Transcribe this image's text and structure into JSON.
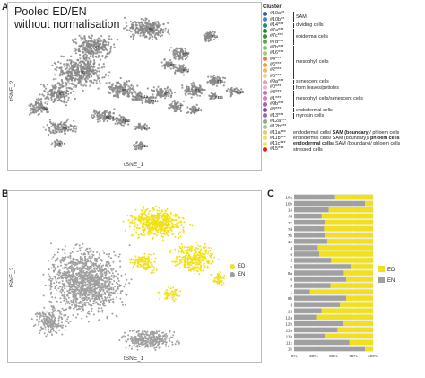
{
  "panelA": {
    "letter": "A",
    "title_line1": "Pooled ED/EN",
    "title_line2": "without normalisation",
    "xlabel": "tSNE_1",
    "ylabel": "tSNE_2",
    "legend_title": "Cluster",
    "legend_items": [
      {
        "label": "#10a**",
        "color": "#2e5fa8"
      },
      {
        "label": "#10b**",
        "color": "#4a7fd0"
      },
      {
        "label": "#14***",
        "color": "#1f8a78"
      },
      {
        "label": "#7a***",
        "color": "#2f7a2a"
      },
      {
        "label": "#7c***",
        "color": "#3c8c3a"
      },
      {
        "label": "#7d***",
        "color": "#57a64a"
      },
      {
        "label": "#7b***",
        "color": "#7dc36b"
      },
      {
        "label": "#16***",
        "color": "#9ed06e"
      },
      {
        "label": "#4***",
        "color": "#f07a2a"
      },
      {
        "label": "#6***",
        "color": "#f49a3a"
      },
      {
        "label": "#2***",
        "color": "#f7b65a"
      },
      {
        "label": "#5***",
        "color": "#f4cc7a"
      },
      {
        "label": "#9a***",
        "color": "#e8a0b8"
      },
      {
        "label": "#0***",
        "color": "#f0b0c6"
      },
      {
        "label": "#8***",
        "color": "#c86ab0"
      },
      {
        "label": "#1***",
        "color": "#d77ac0"
      },
      {
        "label": "#9b***",
        "color": "#b45aa0"
      },
      {
        "label": "#3***",
        "color": "#7a4a9a"
      },
      {
        "label": "#13***",
        "color": "#9a62ba"
      },
      {
        "label": "#12a***",
        "color": "#8aa88a"
      },
      {
        "label": "#12b***",
        "color": "#a6bfa2"
      },
      {
        "label": "#11a***",
        "color": "#d8d060"
      },
      {
        "label": "#11b***",
        "color": "#ece070"
      },
      {
        "label": "#11c***",
        "color": "#f5ec3a"
      },
      {
        "label": "#15***",
        "color": "#e02020"
      }
    ],
    "groups": [
      {
        "label": "SAM",
        "from": 0,
        "to": 1
      },
      {
        "label": "dividing cells",
        "from": 2,
        "to": 2
      },
      {
        "label": "epidermal cells",
        "from": 3,
        "to": 5
      },
      {
        "label": "mesophyll cells",
        "from": 6,
        "to": 11
      },
      {
        "label": "senescent cells",
        "from": 12,
        "to": 12
      },
      {
        "label": "from leaves/petioles",
        "from": 13,
        "to": 13
      },
      {
        "label": "mesophyll cells/senescent cells",
        "from": 14,
        "to": 16
      },
      {
        "label": "endodermal cells",
        "from": 17,
        "to": 17
      },
      {
        "label": "myrosin cells",
        "from": 18,
        "to": 18
      }
    ],
    "row_annotations": [
      {
        "row": 21,
        "parts": [
          {
            "t": "endodermal cells/ ",
            "b": false
          },
          {
            "t": "SAM (boundary)",
            "b": true
          },
          {
            "t": "/ phloem cells",
            "b": false
          }
        ]
      },
      {
        "row": 22,
        "parts": [
          {
            "t": "endodermal cells/ SAM (boundary)/ ",
            "b": false
          },
          {
            "t": "phloem cells",
            "b": true
          }
        ]
      },
      {
        "row": 23,
        "parts": [
          {
            "t": "endodermal cells",
            "b": true
          },
          {
            "t": "/ SAM (boundary)/ phloem cells",
            "b": false
          }
        ]
      },
      {
        "row": 24,
        "parts": [
          {
            "t": "stressed cells",
            "b": false
          }
        ]
      }
    ],
    "cluster_labels": [
      "#6",
      "#7b",
      "#1",
      "#7a",
      "#0",
      "#7c",
      "#7d",
      "#16",
      "#4",
      "#5",
      "#2",
      "#9a",
      "#14",
      "#3",
      "#10a",
      "#11b",
      "#10b",
      "#11a",
      "#9b",
      "#11c",
      "#12a",
      "#12b",
      "#13",
      "#15",
      "#8"
    ]
  },
  "panelB": {
    "letter": "B",
    "xlabel": "tSNE_1",
    "ylabel": "tSNE_2",
    "legend": [
      {
        "label": "ED",
        "color": "#f2e11a"
      },
      {
        "label": "EN",
        "color": "#a0a0a0"
      }
    ]
  },
  "chart_data": {
    "type": "bar",
    "orientation": "horizontal-stacked-percent",
    "categories": [
      "10a",
      "10b",
      "14",
      "7a",
      "7c",
      "7d",
      "7b",
      "16",
      "4",
      "6",
      "2",
      "5",
      "9a",
      "0",
      "8",
      "1",
      "9b",
      "3",
      "13",
      "12a",
      "12b",
      "11a",
      "11b",
      "11c",
      "15"
    ],
    "series": [
      {
        "name": "EN",
        "color": "#a0a0a0",
        "values": [
          52,
          90,
          44,
          35,
          40,
          38,
          40,
          42,
          30,
          32,
          47,
          72,
          63,
          66,
          46,
          20,
          66,
          58,
          35,
          28,
          62,
          55,
          40,
          70,
          90
        ]
      },
      {
        "name": "ED",
        "color": "#f2e11a",
        "values": [
          48,
          10,
          56,
          65,
          60,
          62,
          60,
          58,
          70,
          68,
          53,
          28,
          37,
          34,
          54,
          80,
          34,
          42,
          65,
          72,
          38,
          45,
          60,
          30,
          10
        ]
      }
    ],
    "xticks": [
      "0%",
      "25%",
      "50%",
      "75%",
      "100%"
    ],
    "xlim": [
      0,
      100
    ],
    "legend_position": "right",
    "grid": true
  },
  "panelC": {
    "letter": "C"
  }
}
